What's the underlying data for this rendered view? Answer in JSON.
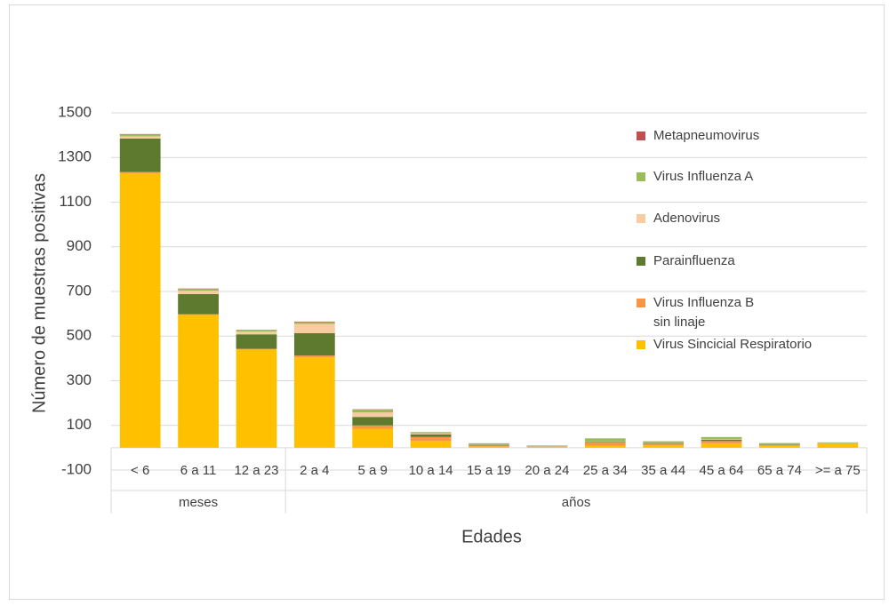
{
  "chart_data": {
    "type": "stacked_bar",
    "y_label": "Número de muestras positivas",
    "x_label": "Edades",
    "categories": [
      "< 6",
      "6 a 11",
      "12 a 23",
      "2 a 4",
      "5 a 9",
      "10 a 14",
      "15 a 19",
      "20 a 24",
      "25 a 34",
      "35 a 44",
      "45 a 64",
      "65 a 74",
      ">= a 75"
    ],
    "category_groups": [
      "meses",
      "meses",
      "meses",
      "años",
      "años",
      "años",
      "años",
      "años",
      "años",
      "años",
      "años",
      "años",
      "años"
    ],
    "series": [
      {
        "name": "Virus Sincicial Respiratorio",
        "color": "#ffc000",
        "values": [
          1230,
          595,
          440,
          405,
          85,
          30,
          5,
          3,
          8,
          10,
          20,
          8,
          18
        ]
      },
      {
        "name": "Virus Influenza B\nsin linaje",
        "color": "#f79646",
        "values": [
          5,
          3,
          3,
          8,
          15,
          18,
          5,
          2,
          15,
          8,
          10,
          3,
          2
        ]
      },
      {
        "name": "Parainfluenza",
        "color": "#5e7a2e",
        "values": [
          150,
          90,
          65,
          100,
          38,
          12,
          3,
          1,
          3,
          3,
          6,
          3,
          1
        ]
      },
      {
        "name": "Adenovirus",
        "color": "#f8cba0",
        "values": [
          10,
          15,
          12,
          42,
          20,
          4,
          1,
          1,
          2,
          1,
          2,
          1,
          1
        ]
      },
      {
        "name": "Virus Influenza A",
        "color": "#9bbb59",
        "values": [
          8,
          8,
          7,
          8,
          12,
          6,
          6,
          3,
          14,
          7,
          10,
          6,
          2
        ]
      },
      {
        "name": "Metapneumovirus",
        "color": "#c0504d",
        "values": [
          2,
          2,
          1,
          2,
          2,
          0,
          0,
          0,
          0,
          0,
          0,
          0,
          0
        ]
      }
    ],
    "ylim": [
      -100,
      1500
    ],
    "yticks": [
      -100,
      100,
      300,
      500,
      700,
      900,
      1100,
      1300,
      1500
    ],
    "grid": true
  }
}
